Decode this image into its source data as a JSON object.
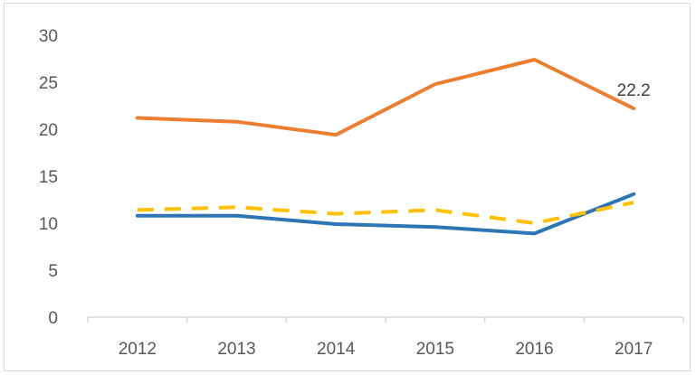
{
  "chart_data": {
    "type": "line",
    "title": "",
    "xlabel": "",
    "ylabel": "",
    "categories": [
      "2012",
      "2013",
      "2014",
      "2015",
      "2016",
      "2017"
    ],
    "ylim": [
      0,
      30
    ],
    "yticks": [
      "0",
      "5",
      "10",
      "15",
      "20",
      "25",
      "30"
    ],
    "grid": false,
    "legend": "none",
    "series": [
      {
        "values": [
          21.2,
          20.8,
          19.4,
          24.8,
          27.4,
          22.2
        ],
        "color": "#ed7d31",
        "dash": "solid"
      },
      {
        "values": [
          10.8,
          10.8,
          9.9,
          9.6,
          8.9,
          13.1
        ],
        "color": "#2e75b6",
        "dash": "solid"
      },
      {
        "values": [
          11.4,
          11.7,
          11.0,
          11.4,
          10.0,
          12.2
        ],
        "color": "#ffc000",
        "dash": "dashed"
      }
    ],
    "annotations": [
      {
        "series": 0,
        "point": 5,
        "text": "22.2"
      }
    ]
  }
}
